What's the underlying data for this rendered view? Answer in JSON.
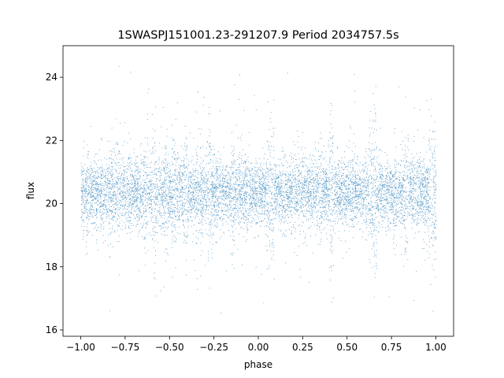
{
  "chart_data": {
    "type": "scatter",
    "title": "1SWASPJ151001.23-291207.9 Period 2034757.5s",
    "xlabel": "phase",
    "ylabel": "flux",
    "xlim": [
      -1.1,
      1.1
    ],
    "ylim": [
      15.8,
      25.0
    ],
    "xticks": [
      -1.0,
      -0.75,
      -0.5,
      -0.25,
      0.0,
      0.25,
      0.5,
      0.75,
      1.0
    ],
    "xtick_labels": [
      "−1.00",
      "−0.75",
      "−0.50",
      "−0.25",
      "0.00",
      "0.25",
      "0.50",
      "0.75",
      "1.00"
    ],
    "yticks": [
      16,
      18,
      20,
      22,
      24
    ],
    "ytick_labels": [
      "16",
      "18",
      "20",
      "22",
      "24"
    ],
    "grid": false,
    "marker_color": "#1f77b4",
    "series": [
      {
        "x_range": [
          -1.0,
          1.0
        ],
        "baseline_flux": 20.35,
        "typical_spread": [
          19.2,
          21.5
        ],
        "min_flux": 16.3,
        "max_flux": 24.6,
        "n_points_approx": 40000
      }
    ]
  }
}
